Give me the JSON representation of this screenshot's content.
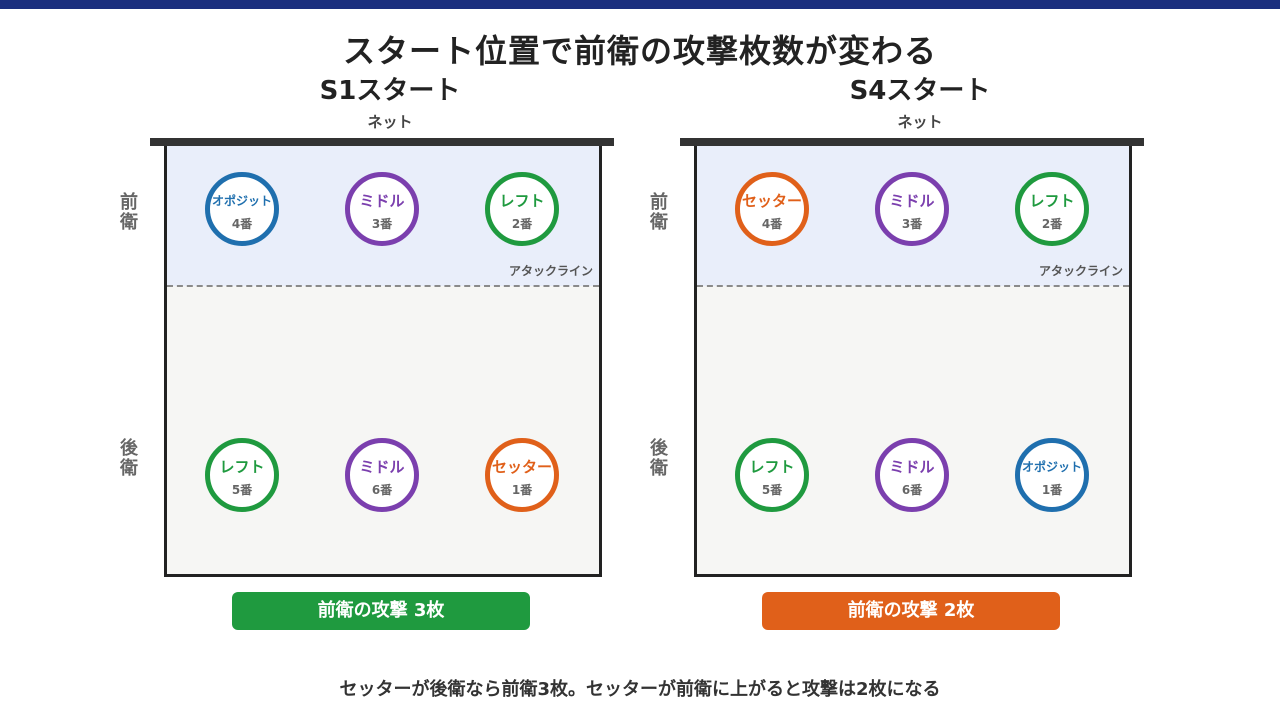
{
  "title": "スタート位置で前衛の攻撃枚数が変わる",
  "footer": "セッターが後衛なら前衛3枚。セッターが前衛に上がると攻撃は2枚になる",
  "net_label": "ネット",
  "attack_line_label": "アタックライン",
  "row_labels": {
    "front": "前衛",
    "back": "後衛"
  },
  "colors": {
    "top_bar": "#1b2f7e",
    "net": "#333333",
    "front_zone": "#e9eefa",
    "opposite": "#1f6fae",
    "middle": "#7b3fae",
    "left": "#1f9a3f",
    "setter": "#e0601a"
  },
  "panels": [
    {
      "title": "S1スタート",
      "badge": {
        "label": "前衛の攻撃 3枚",
        "color": "#1f9a3f"
      },
      "front": [
        {
          "role": "オポジット",
          "number": "4番",
          "color": "#1f6fae"
        },
        {
          "role": "ミドル",
          "number": "3番",
          "color": "#7b3fae"
        },
        {
          "role": "レフト",
          "number": "2番",
          "color": "#1f9a3f"
        }
      ],
      "back": [
        {
          "role": "レフト",
          "number": "5番",
          "color": "#1f9a3f"
        },
        {
          "role": "ミドル",
          "number": "6番",
          "color": "#7b3fae"
        },
        {
          "role": "セッター",
          "number": "1番",
          "color": "#e0601a"
        }
      ]
    },
    {
      "title": "S4スタート",
      "badge": {
        "label": "前衛の攻撃 2枚",
        "color": "#e0601a"
      },
      "front": [
        {
          "role": "セッター",
          "number": "4番",
          "color": "#e0601a"
        },
        {
          "role": "ミドル",
          "number": "3番",
          "color": "#7b3fae"
        },
        {
          "role": "レフト",
          "number": "2番",
          "color": "#1f9a3f"
        }
      ],
      "back": [
        {
          "role": "レフト",
          "number": "5番",
          "color": "#1f9a3f"
        },
        {
          "role": "ミドル",
          "number": "6番",
          "color": "#7b3fae"
        },
        {
          "role": "オポジット",
          "number": "1番",
          "color": "#1f6fae"
        }
      ]
    }
  ]
}
